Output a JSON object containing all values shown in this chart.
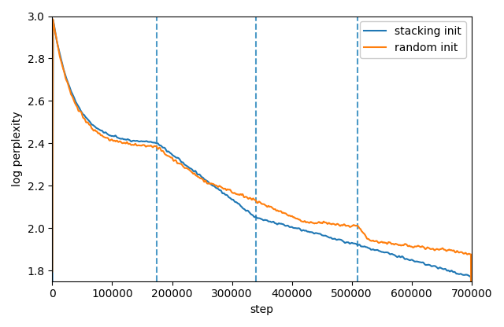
{
  "title": "",
  "xlabel": "step",
  "ylabel": "log perplexity",
  "xlim": [
    0,
    700000
  ],
  "ylim": [
    1.75,
    3.0
  ],
  "yticks": [
    1.8,
    2.0,
    2.2,
    2.4,
    2.6,
    2.8,
    3.0
  ],
  "xticks": [
    0,
    100000,
    200000,
    300000,
    400000,
    500000,
    600000,
    700000
  ],
  "xtick_labels": [
    "0",
    "100000",
    "200000",
    "300000",
    "400000",
    "500000",
    "600000",
    "700000"
  ],
  "vlines": [
    175000,
    340000,
    510000
  ],
  "vline_color": "#4c9ac7",
  "vline_style": "--",
  "stacking_color": "#1f77b4",
  "random_color": "#ff7f0e",
  "line_width": 1.5,
  "legend_labels": [
    "stacking init",
    "random init"
  ],
  "figsize": [
    6.4,
    4.16
  ],
  "dpi": 100
}
